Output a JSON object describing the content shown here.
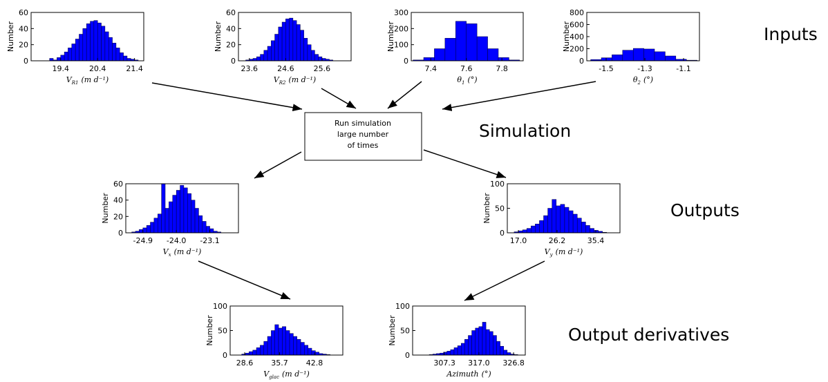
{
  "chart_data": [
    {
      "type": "histogram",
      "ylabel": "Number",
      "xlabel": "V",
      "xlabel_sub": "R1",
      "xlabel_unit": "(m d⁻¹)",
      "color": "#0000ff",
      "bins": [
        19.1,
        19.2,
        19.3,
        19.4,
        19.5,
        19.6,
        19.7,
        19.8,
        19.9,
        20.0,
        20.1,
        20.2,
        20.3,
        20.4,
        20.5,
        20.6,
        20.7,
        20.8,
        20.9,
        21.0,
        21.1,
        21.2,
        21.3,
        21.4,
        21.5
      ],
      "values": [
        3,
        1,
        4,
        7,
        11,
        16,
        21,
        27,
        33,
        40,
        46,
        49,
        50,
        47,
        43,
        36,
        29,
        22,
        16,
        10,
        6,
        3,
        2,
        1
      ],
      "xlim": [
        18.6,
        21.65
      ],
      "xticks": [
        19.4,
        20.4,
        21.4
      ],
      "ylim": [
        0,
        60
      ],
      "yticks": [
        0,
        20,
        40,
        60
      ]
    },
    {
      "type": "histogram",
      "ylabel": "Number",
      "xlabel": "V",
      "xlabel_sub": "R2",
      "xlabel_unit": "(m d⁻¹)",
      "color": "#0000ff",
      "bins": [
        23.5,
        23.6,
        23.7,
        23.8,
        23.9,
        24.0,
        24.1,
        24.2,
        24.3,
        24.4,
        24.5,
        24.6,
        24.7,
        24.8,
        24.9,
        25.0,
        25.1,
        25.2,
        25.3,
        25.4,
        25.5,
        25.6,
        25.7,
        25.8,
        25.9
      ],
      "values": [
        1,
        2,
        3,
        5,
        8,
        13,
        18,
        25,
        33,
        42,
        48,
        52,
        53,
        50,
        45,
        38,
        28,
        20,
        13,
        8,
        5,
        3,
        2,
        1
      ],
      "xlim": [
        23.3,
        26.4
      ],
      "xticks": [
        23.6,
        24.6,
        25.6
      ],
      "ylim": [
        0,
        60
      ],
      "yticks": [
        0,
        20,
        40,
        60
      ]
    },
    {
      "type": "histogram",
      "ylabel": "Number",
      "xlabel": "θ",
      "xlabel_sub": "1",
      "xlabel_unit": "(°)",
      "color": "#0000ff",
      "bins": [
        7.3,
        7.36,
        7.42,
        7.48,
        7.54,
        7.6,
        7.66,
        7.72,
        7.78,
        7.84,
        7.9
      ],
      "values": [
        5,
        20,
        75,
        140,
        245,
        230,
        150,
        75,
        20,
        5
      ],
      "xlim": [
        7.29,
        7.92
      ],
      "xticks": [
        7.4,
        7.6,
        7.8
      ],
      "ylim": [
        0,
        300
      ],
      "yticks": [
        0,
        100,
        200,
        300
      ]
    },
    {
      "type": "histogram",
      "ylabel": "Number",
      "xlabel": "θ",
      "xlabel_sub": "2",
      "xlabel_unit": "(°)",
      "color": "#0000ff",
      "bins": [
        -1.58,
        -1.525,
        -1.47,
        -1.415,
        -1.36,
        -1.305,
        -1.25,
        -1.195,
        -1.14,
        -1.085,
        -1.03
      ],
      "values": [
        20,
        50,
        100,
        175,
        205,
        195,
        150,
        80,
        25,
        10
      ],
      "xlim": [
        -1.6,
        -1.018
      ],
      "xticks": [
        -1.5,
        -1.3,
        -1.1
      ],
      "ylim": [
        0,
        800
      ],
      "yticks": [
        0,
        200,
        400,
        600,
        800
      ]
    },
    {
      "type": "histogram",
      "ylabel": "Number",
      "xlabel": "V",
      "xlabel_sub": "x",
      "xlabel_unit": "(m d⁻¹)",
      "color": "#0000ff",
      "bins": [
        -25.2,
        -25.1,
        -25.0,
        -24.9,
        -24.8,
        -24.7,
        -24.6,
        -24.5,
        -24.4,
        -24.3,
        -24.2,
        -24.1,
        -24.0,
        -23.9,
        -23.8,
        -23.7,
        -23.6,
        -23.5,
        -23.4,
        -23.3,
        -23.2,
        -23.1,
        -23.0,
        -22.9,
        -22.8
      ],
      "values": [
        1,
        2,
        4,
        6,
        9,
        13,
        18,
        23,
        60,
        30,
        38,
        46,
        52,
        58,
        55,
        48,
        40,
        30,
        21,
        14,
        8,
        5,
        2,
        1
      ],
      "xlim": [
        -25.36,
        -22.33
      ],
      "xticks": [
        -24.9,
        {
          "value": -24.0,
          "label": "-24.0"
        },
        -23.1
      ],
      "ylim": [
        0,
        60
      ],
      "yticks": [
        0,
        20,
        40,
        60
      ]
    },
    {
      "type": "histogram",
      "ylabel": "Number",
      "xlabel": "V",
      "xlabel_sub": "y",
      "xlabel_unit": "(m d⁻¹)",
      "color": "#0000ff",
      "bins": [
        16,
        17,
        18,
        19,
        20,
        21,
        22,
        23,
        24,
        25,
        26,
        27,
        28,
        29,
        30,
        31,
        32,
        33,
        34,
        35,
        36,
        37,
        38
      ],
      "values": [
        2,
        4,
        6,
        9,
        14,
        18,
        25,
        35,
        50,
        68,
        55,
        58,
        52,
        45,
        38,
        30,
        22,
        15,
        9,
        5,
        3,
        1
      ],
      "xlim": [
        14.37,
        41.15
      ],
      "xticks": [
        {
          "value": 17.0,
          "label": "17.0"
        },
        26.2,
        35.4
      ],
      "ylim": [
        0,
        100
      ],
      "yticks": [
        0,
        50,
        100
      ]
    },
    {
      "type": "histogram",
      "ylabel": "Number",
      "xlabel": "V",
      "xlabel_sub": "glac",
      "xlabel_unit": "(m d⁻¹)",
      "color": "#0000ff",
      "bins": [
        28,
        28.75,
        29.5,
        30.25,
        31,
        31.75,
        32.5,
        33.25,
        34,
        34.75,
        35.5,
        36.25,
        37,
        37.75,
        38.5,
        39.25,
        40,
        40.75,
        41.5,
        42.25,
        43,
        43.75,
        44.5,
        45.25,
        46
      ],
      "values": [
        2,
        4,
        7,
        10,
        15,
        20,
        28,
        38,
        50,
        62,
        55,
        58,
        50,
        44,
        38,
        32,
        26,
        20,
        14,
        9,
        6,
        3,
        2,
        1
      ],
      "xlim": [
        25.65,
        48.57
      ],
      "xticks": [
        28.6,
        35.7,
        42.8
      ],
      "ylim": [
        0,
        100
      ],
      "yticks": [
        0,
        50,
        100
      ]
    },
    {
      "type": "histogram",
      "ylabel": "Number",
      "xlabel": "Azimuth",
      "xlabel_unit": "(°)",
      "color": "#0000ff",
      "bins": [
        303,
        304,
        305,
        306,
        307,
        308,
        309,
        310,
        311,
        312,
        313,
        314,
        315,
        316,
        317,
        318,
        319,
        320,
        321,
        322,
        323,
        324,
        325,
        326,
        327,
        328
      ],
      "values": [
        1,
        2,
        3,
        4,
        6,
        8,
        11,
        15,
        19,
        24,
        32,
        40,
        50,
        55,
        58,
        67,
        52,
        48,
        40,
        28,
        18,
        10,
        5,
        2,
        1
      ],
      "xlim": [
        298.3,
        330.1
      ],
      "xticks": [
        307.3,
        {
          "value": 317.0,
          "label": "317.0"
        },
        326.8
      ],
      "ylim": [
        0,
        100
      ],
      "yticks": [
        0,
        50,
        100
      ]
    }
  ],
  "labels": {
    "inputs": "Inputs",
    "simulation": "Simulation",
    "outputs": "Outputs",
    "output_derivatives": "Output derivatives"
  },
  "box": {
    "lines": [
      "Run simulation",
      "large number",
      "of times"
    ]
  }
}
